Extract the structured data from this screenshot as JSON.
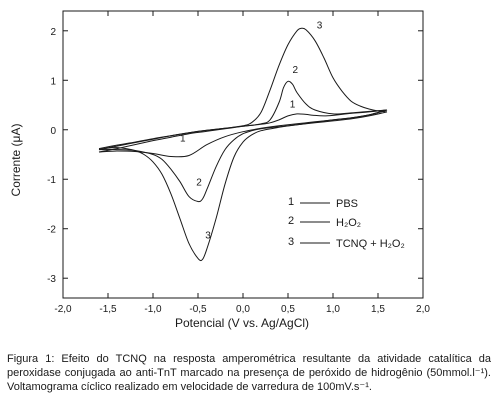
{
  "chart_data": {
    "type": "line",
    "xlabel": "Potencial (V vs. Ag/AgCl)",
    "ylabel": "Corrente (μA)",
    "xlim": [
      -2.0,
      2.0
    ],
    "ylim": [
      -3.4,
      2.4
    ],
    "x_ticks": [
      -2.0,
      -1.5,
      -1.0,
      -0.5,
      0.0,
      0.5,
      1.0,
      1.5,
      2.0
    ],
    "x_tick_labels": [
      "-2,0",
      "-1,5",
      "-1,0",
      "-0,5",
      "0,0",
      "0,5",
      "1,0",
      "1,5",
      "2,0"
    ],
    "y_ticks": [
      -3,
      -2,
      -1,
      0,
      1,
      2
    ],
    "y_tick_labels": [
      "-3",
      "-2",
      "-1",
      "0",
      "1",
      "2"
    ],
    "grid": false,
    "legend_position": "lower-right",
    "series": [
      {
        "key": "1",
        "name": "PBS",
        "label": "1",
        "color": "#1a1a1a",
        "forward_x": [
          -1.6,
          -1.4,
          -1.2,
          -1.0,
          -0.8,
          -0.6,
          -0.4,
          -0.2,
          0.0,
          0.2,
          0.3,
          0.4,
          0.5,
          0.6,
          0.7,
          0.8,
          0.9,
          1.0,
          1.2,
          1.4,
          1.6
        ],
        "forward_y": [
          -0.45,
          -0.38,
          -0.3,
          -0.22,
          -0.15,
          -0.08,
          -0.03,
          0.02,
          0.07,
          0.11,
          0.14,
          0.2,
          0.28,
          0.32,
          0.31,
          0.29,
          0.28,
          0.29,
          0.33,
          0.36,
          0.4
        ],
        "reverse_x": [
          1.6,
          1.4,
          1.2,
          1.0,
          0.8,
          0.6,
          0.4,
          0.2,
          0.0,
          -0.2,
          -0.4,
          -0.6,
          -0.8,
          -1.0,
          -1.2,
          -1.4,
          -1.6
        ],
        "reverse_y": [
          0.4,
          0.3,
          0.24,
          0.2,
          0.16,
          0.12,
          0.08,
          0.03,
          -0.04,
          -0.14,
          -0.3,
          -0.52,
          -0.54,
          -0.48,
          -0.44,
          -0.43,
          -0.45
        ],
        "label_at": [
          0.52,
          0.45
        ]
      },
      {
        "key": "2",
        "name": "H₂O₂",
        "label": "2",
        "color": "#1a1a1a",
        "forward_x": [
          -1.6,
          -1.4,
          -1.2,
          -1.0,
          -0.8,
          -0.6,
          -0.4,
          -0.2,
          0.0,
          0.2,
          0.3,
          0.4,
          0.45,
          0.5,
          0.55,
          0.6,
          0.7,
          0.8,
          1.0,
          1.2,
          1.4,
          1.6
        ],
        "forward_y": [
          -0.4,
          -0.33,
          -0.26,
          -0.19,
          -0.12,
          -0.06,
          -0.01,
          0.03,
          0.07,
          0.12,
          0.2,
          0.55,
          0.85,
          0.98,
          0.92,
          0.75,
          0.52,
          0.4,
          0.32,
          0.34,
          0.37,
          0.4
        ],
        "reverse_x": [
          1.6,
          1.4,
          1.2,
          1.0,
          0.8,
          0.6,
          0.4,
          0.2,
          0.1,
          0.0,
          -0.1,
          -0.2,
          -0.3,
          -0.4,
          -0.45,
          -0.5,
          -0.6,
          -0.7,
          -0.8,
          -0.9,
          -1.0,
          -1.2,
          -1.4,
          -1.6
        ],
        "reverse_y": [
          0.4,
          0.3,
          0.24,
          0.2,
          0.15,
          0.1,
          0.06,
          0.02,
          -0.02,
          -0.08,
          -0.2,
          -0.4,
          -0.75,
          -1.2,
          -1.4,
          -1.45,
          -1.35,
          -1.05,
          -0.8,
          -0.6,
          -0.5,
          -0.42,
          -0.4,
          -0.4
        ],
        "label_at": [
          -0.52,
          -1.13
        ]
      },
      {
        "key": "3",
        "name": "TCNQ + H₂O₂",
        "label": "3",
        "color": "#1a1a1a",
        "forward_x": [
          -1.6,
          -1.4,
          -1.2,
          -1.0,
          -0.8,
          -0.6,
          -0.4,
          -0.2,
          0.0,
          0.1,
          0.2,
          0.3,
          0.4,
          0.5,
          0.6,
          0.65,
          0.7,
          0.8,
          0.9,
          1.0,
          1.1,
          1.2,
          1.3,
          1.4,
          1.5,
          1.6
        ],
        "forward_y": [
          -0.38,
          -0.31,
          -0.25,
          -0.18,
          -0.12,
          -0.06,
          -0.01,
          0.03,
          0.08,
          0.15,
          0.35,
          0.8,
          1.3,
          1.72,
          2.0,
          2.05,
          2.02,
          1.8,
          1.45,
          1.05,
          0.78,
          0.58,
          0.48,
          0.42,
          0.38,
          0.36
        ],
        "reverse_x": [
          1.6,
          1.4,
          1.2,
          1.0,
          0.8,
          0.6,
          0.4,
          0.2,
          0.1,
          0.0,
          -0.1,
          -0.2,
          -0.3,
          -0.4,
          -0.45,
          -0.5,
          -0.6,
          -0.7,
          -0.8,
          -0.9,
          -1.0,
          -1.1,
          -1.2,
          -1.3,
          -1.4,
          -1.5,
          -1.6
        ],
        "reverse_y": [
          0.36,
          0.28,
          0.22,
          0.18,
          0.14,
          0.1,
          0.05,
          -0.02,
          -0.1,
          -0.25,
          -0.55,
          -1.1,
          -1.8,
          -2.4,
          -2.62,
          -2.6,
          -2.3,
          -1.8,
          -1.3,
          -0.9,
          -0.65,
          -0.5,
          -0.42,
          -0.38,
          -0.36,
          -0.37,
          -0.4
        ],
        "label_at": [
          -0.42,
          -2.2
        ]
      }
    ],
    "inline_labels": [
      {
        "text": "3",
        "x": 0.82,
        "y": 2.05
      },
      {
        "text": "2",
        "x": 0.55,
        "y": 1.15
      },
      {
        "text": "1",
        "x": -0.7,
        "y": -0.24
      }
    ]
  },
  "legend": [
    {
      "number": "1",
      "text": "PBS"
    },
    {
      "number": "2",
      "text": "H₂O₂"
    },
    {
      "number": "3",
      "text": "TCNQ + H₂O₂"
    }
  ],
  "caption": "Figura 1: Efeito do TCNQ na resposta amperométrica resultante da atividade catalítica da peroxidase conjugada ao anti-TnT marcado na presença de peróxido de hidrogênio (50mmol.l⁻¹). Voltamograma cíclico realizado em velocidade de varredura de 100mV.s⁻¹."
}
